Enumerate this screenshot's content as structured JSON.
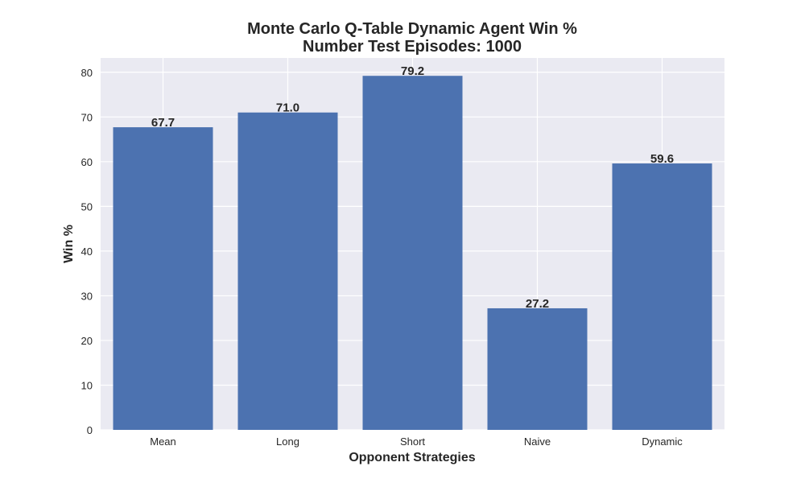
{
  "colors": {
    "plot_background": "#eaeaf2",
    "grid": "#ffffff",
    "bar": "#4c72b0",
    "text": "#262626"
  },
  "chart_data": {
    "type": "bar",
    "title_line1": "Monte Carlo Q-Table Dynamic Agent Win %",
    "title_line2": "Number Test Episodes: 1000",
    "xlabel": "Opponent Strategies",
    "ylabel": "Win %",
    "categories": [
      "Mean",
      "Long",
      "Short",
      "Naive",
      "Dynamic"
    ],
    "values": [
      67.7,
      71.0,
      79.2,
      27.2,
      59.6
    ],
    "value_labels": [
      "67.7",
      "71.0",
      "79.2",
      "27.2",
      "59.6"
    ],
    "ylim": [
      0,
      83.2
    ],
    "yticks": [
      0,
      10,
      20,
      30,
      40,
      50,
      60,
      70,
      80
    ],
    "grid": true
  }
}
